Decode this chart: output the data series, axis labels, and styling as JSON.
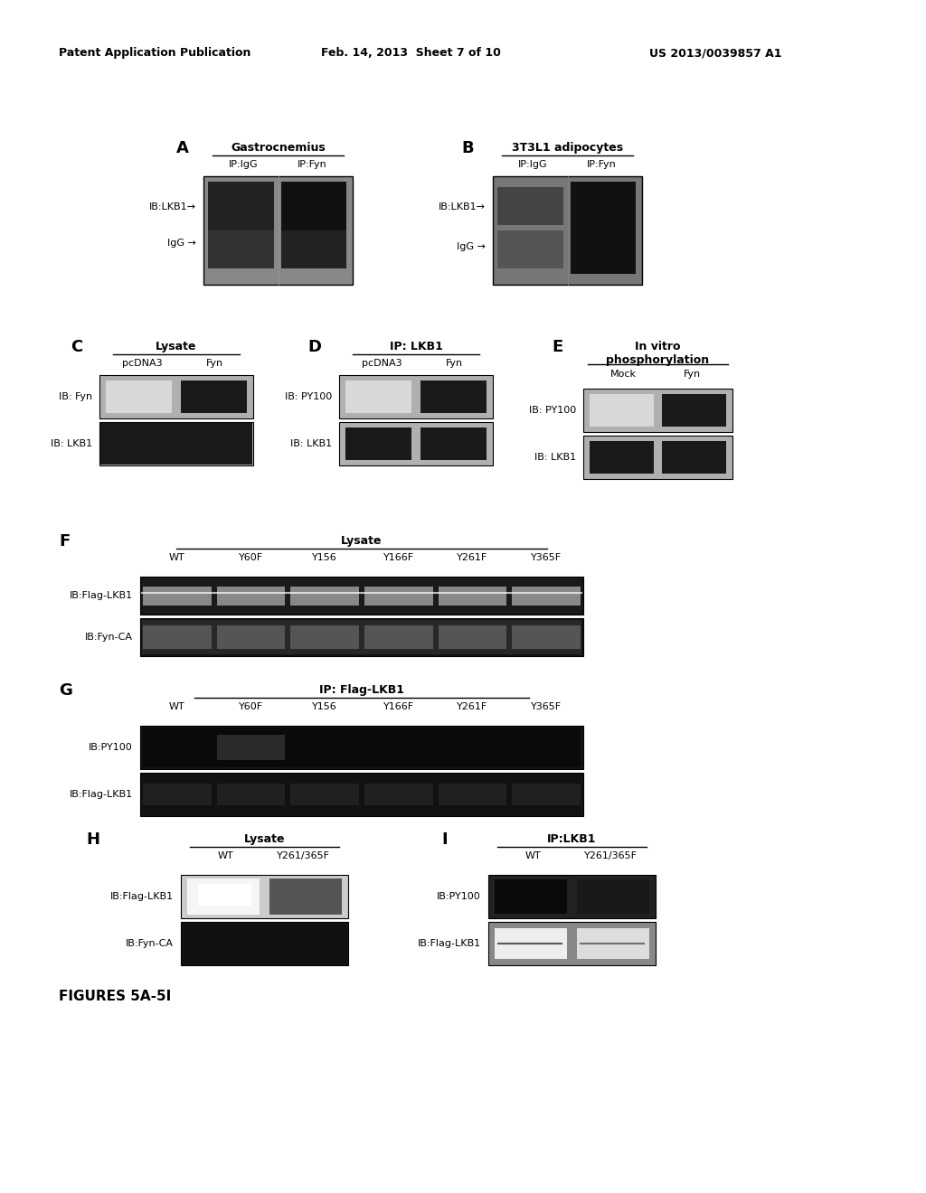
{
  "header_left": "Patent Application Publication",
  "header_center": "Feb. 14, 2013  Sheet 7 of 10",
  "header_right": "US 2013/0039857 A1",
  "footer_label": "FIGURES 5A-5I",
  "panel_A": {
    "label": "A",
    "title": "Gastrocnemius",
    "col1": "IP:IgG",
    "col2": "IP:Fyn",
    "row1": "IB:LKB1→",
    "row2": "IgG →"
  },
  "panel_B": {
    "label": "B",
    "title": "3T3L1 adipocytes",
    "col1": "IP:IgG",
    "col2": "IP:Fyn",
    "row1": "IB:LKB1→",
    "row2": "IgG →"
  },
  "panel_C": {
    "label": "C",
    "title": "Lysate",
    "col1": "pcDNA3",
    "col2": "Fyn",
    "row1": "IB: Fyn",
    "row2": "IB: LKB1"
  },
  "panel_D": {
    "label": "D",
    "title": "IP: LKB1",
    "col1": "pcDNA3",
    "col2": "Fyn",
    "row1": "IB: PY100",
    "row2": "IB: LKB1"
  },
  "panel_E": {
    "label": "E",
    "title": "In vitro\nphosphorylation",
    "col1": "Mock",
    "col2": "Fyn",
    "row1": "IB: PY100",
    "row2": "IB: LKB1"
  },
  "panel_F": {
    "label": "F",
    "title": "Lysate",
    "cols": [
      "WT",
      "Y60F",
      "Y156",
      "Y166F",
      "Y261F",
      "Y365F"
    ],
    "row1": "IB:Flag-LKB1",
    "row2": "IB:Fyn-CA"
  },
  "panel_G": {
    "label": "G",
    "title": "IP: Flag-LKB1",
    "cols": [
      "WT",
      "Y60F",
      "Y156",
      "Y166F",
      "Y261F",
      "Y365F"
    ],
    "row1": "IB:PY100",
    "row2": "IB:Flag-LKB1"
  },
  "panel_H": {
    "label": "H",
    "title": "Lysate",
    "col1": "WT",
    "col2": "Y261/365F",
    "row1": "IB:Flag-LKB1",
    "row2": "IB:Fyn-CA"
  },
  "panel_I": {
    "label": "I",
    "title": "IP:LKB1",
    "col1": "WT",
    "col2": "Y261/365F",
    "row1": "IB:PY100",
    "row2": "IB:Flag-LKB1"
  }
}
